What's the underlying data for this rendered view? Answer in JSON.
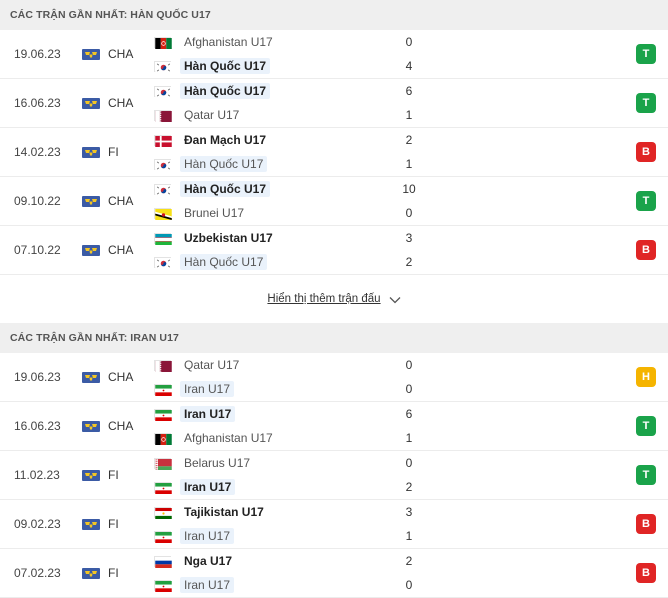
{
  "sections": [
    {
      "title": "CÁC TRẬN GẦN NHẤT: HÀN QUỐC U17",
      "matches": [
        {
          "date": "19.06.23",
          "league": "CHA",
          "home": {
            "name": "Afghanistan U17",
            "flag": "afghanistan-flag",
            "score": "0",
            "bold": false,
            "hl": false
          },
          "away": {
            "name": "Hàn Quốc U17",
            "flag": "south-korea-flag",
            "score": "4",
            "bold": true,
            "hl": true
          },
          "result": "T"
        },
        {
          "date": "16.06.23",
          "league": "CHA",
          "home": {
            "name": "Hàn Quốc U17",
            "flag": "south-korea-flag",
            "score": "6",
            "bold": true,
            "hl": true
          },
          "away": {
            "name": "Qatar U17",
            "flag": "qatar-flag",
            "score": "1",
            "bold": false,
            "hl": false
          },
          "result": "T"
        },
        {
          "date": "14.02.23",
          "league": "FI",
          "home": {
            "name": "Đan Mạch U17",
            "flag": "denmark-flag",
            "score": "2",
            "bold": true,
            "hl": false
          },
          "away": {
            "name": "Hàn Quốc U17",
            "flag": "south-korea-flag",
            "score": "1",
            "bold": false,
            "hl": true
          },
          "result": "B"
        },
        {
          "date": "09.10.22",
          "league": "CHA",
          "home": {
            "name": "Hàn Quốc U17",
            "flag": "south-korea-flag",
            "score": "10",
            "bold": true,
            "hl": true
          },
          "away": {
            "name": "Brunei U17",
            "flag": "brunei-flag",
            "score": "0",
            "bold": false,
            "hl": false
          },
          "result": "T"
        },
        {
          "date": "07.10.22",
          "league": "CHA",
          "home": {
            "name": "Uzbekistan U17",
            "flag": "uzbekistan-flag",
            "score": "3",
            "bold": true,
            "hl": false
          },
          "away": {
            "name": "Hàn Quốc U17",
            "flag": "south-korea-flag",
            "score": "2",
            "bold": false,
            "hl": true
          },
          "result": "B"
        }
      ],
      "show_more": "Hiển thị thêm trận đấu"
    },
    {
      "title": "CÁC TRẬN GẦN NHẤT: IRAN U17",
      "matches": [
        {
          "date": "19.06.23",
          "league": "CHA",
          "home": {
            "name": "Qatar U17",
            "flag": "qatar-flag",
            "score": "0",
            "bold": false,
            "hl": false
          },
          "away": {
            "name": "Iran U17",
            "flag": "iran-flag",
            "score": "0",
            "bold": false,
            "hl": true
          },
          "result": "H"
        },
        {
          "date": "16.06.23",
          "league": "CHA",
          "home": {
            "name": "Iran U17",
            "flag": "iran-flag",
            "score": "6",
            "bold": true,
            "hl": true
          },
          "away": {
            "name": "Afghanistan U17",
            "flag": "afghanistan-flag",
            "score": "1",
            "bold": false,
            "hl": false
          },
          "result": "T"
        },
        {
          "date": "11.02.23",
          "league": "FI",
          "home": {
            "name": "Belarus U17",
            "flag": "belarus-flag",
            "score": "0",
            "bold": false,
            "hl": false
          },
          "away": {
            "name": "Iran U17",
            "flag": "iran-flag",
            "score": "2",
            "bold": true,
            "hl": true
          },
          "result": "T"
        },
        {
          "date": "09.02.23",
          "league": "FI",
          "home": {
            "name": "Tajikistan U17",
            "flag": "tajikistan-flag",
            "score": "3",
            "bold": true,
            "hl": false
          },
          "away": {
            "name": "Iran U17",
            "flag": "iran-flag",
            "score": "1",
            "bold": false,
            "hl": true
          },
          "result": "B"
        },
        {
          "date": "07.02.23",
          "league": "FI",
          "home": {
            "name": "Nga U17",
            "flag": "russia-flag",
            "score": "2",
            "bold": true,
            "hl": false
          },
          "away": {
            "name": "Iran U17",
            "flag": "iran-flag",
            "score": "0",
            "bold": false,
            "hl": true
          },
          "result": "B"
        }
      ]
    }
  ],
  "colors": {
    "win": "#1aa34a",
    "loss": "#e02525",
    "draw": "#f5b400",
    "header_bg": "#efefef",
    "highlight": "#eaf2fb"
  }
}
